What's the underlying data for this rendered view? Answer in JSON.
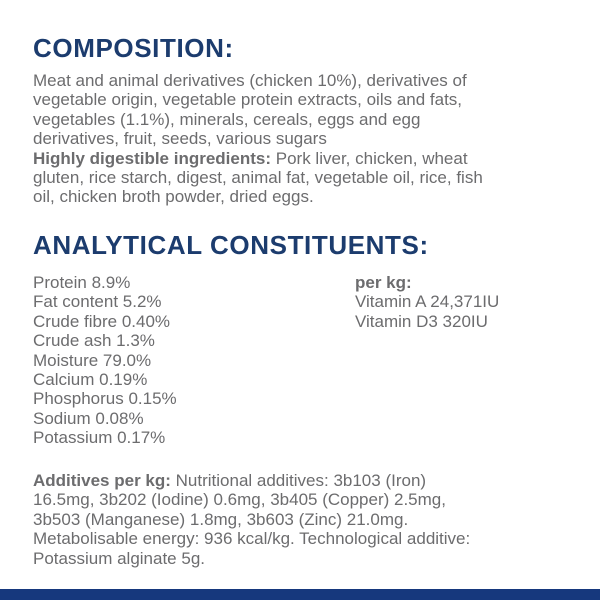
{
  "colors": {
    "heading": "#1c3c6e",
    "body": "#6c6c6e",
    "bottom_bar": "#16387d",
    "background": "#ffffff"
  },
  "composition": {
    "heading": "COMPOSITION:",
    "lines": [
      {
        "text": "Meat and animal derivatives (chicken 10%), derivatives of"
      },
      {
        "text": "vegetable origin, vegetable protein extracts, oils and fats,"
      },
      {
        "text": "vegetables (1.1%), minerals, cereals, eggs and egg"
      },
      {
        "text": "derivatives, fruit, seeds, various sugars"
      },
      {
        "bold": "Highly digestible ingredients:",
        "text": " Pork liver, chicken, wheat"
      },
      {
        "text": "gluten, rice starch, digest, animal fat, vegetable oil, rice, fish"
      },
      {
        "text": "oil, chicken broth powder, dried eggs."
      }
    ]
  },
  "analytical": {
    "heading": "ANALYTICAL CONSTITUENTS:",
    "left_column": [
      {
        "name": "Protein",
        "value": "8.9%"
      },
      {
        "name": "Fat content",
        "value": "5.2%"
      },
      {
        "name": "Crude fibre",
        "value": "0.40%"
      },
      {
        "name": "Crude ash",
        "value": "1.3%"
      },
      {
        "name": "Moisture",
        "value": "79.0%"
      },
      {
        "name": "Calcium",
        "value": "0.19%"
      },
      {
        "name": "Phosphorus",
        "value": "0.15%"
      },
      {
        "name": "Sodium",
        "value": "0.08%"
      },
      {
        "name": "Potassium",
        "value": "0.17%"
      }
    ],
    "right_column": {
      "heading": "per kg:",
      "items": [
        {
          "name": "Vitamin A",
          "value": "24,371IU"
        },
        {
          "name": "Vitamin D3",
          "value": "320IU"
        }
      ]
    }
  },
  "additives": {
    "lines": [
      {
        "bold": "Additives per kg:",
        "text": " Nutritional additives: 3b103 (Iron)"
      },
      {
        "text": "16.5mg, 3b202 (Iodine) 0.6mg, 3b405 (Copper) 2.5mg,"
      },
      {
        "text": "3b503 (Manganese) 1.8mg, 3b603 (Zinc) 21.0mg."
      },
      {
        "text": "Metabolisable energy: 936 kcal/kg. Technological additive:"
      },
      {
        "text": "Potassium alginate 5g."
      }
    ]
  }
}
